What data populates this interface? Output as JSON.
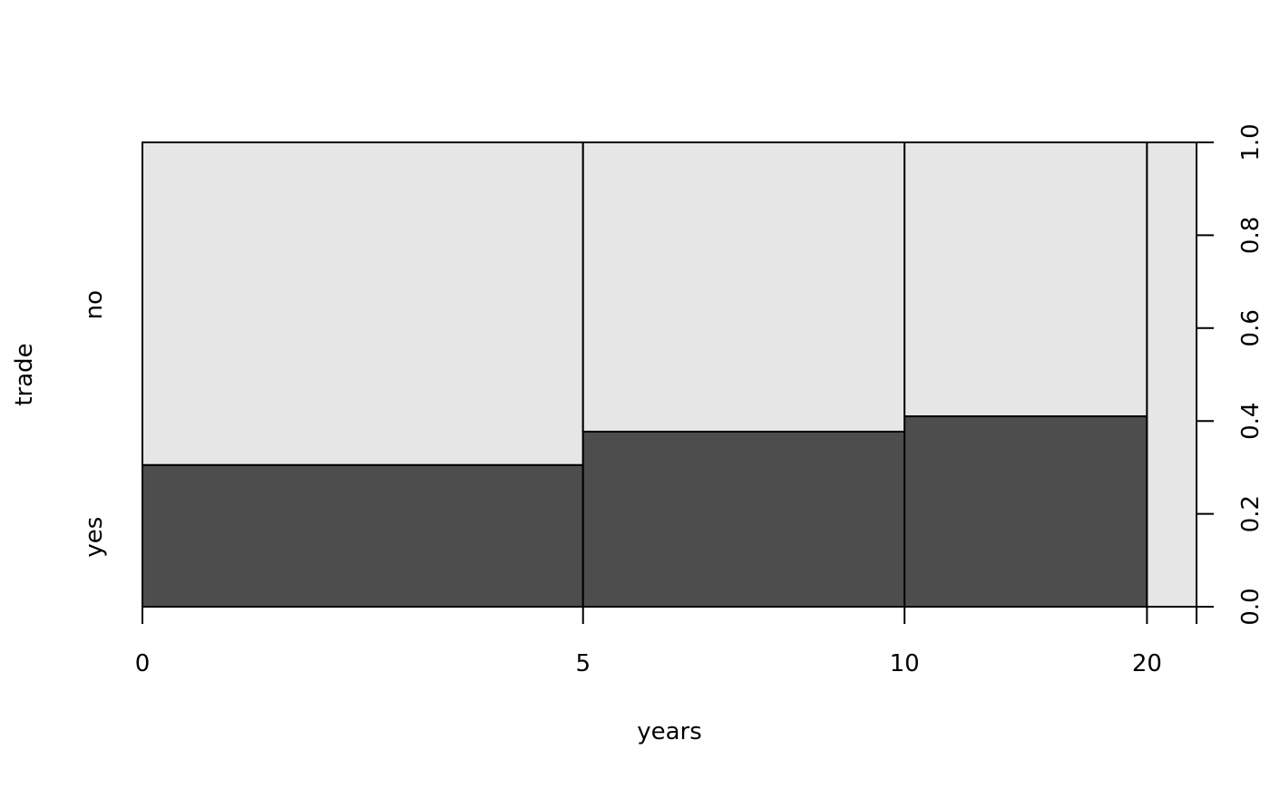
{
  "chart_data": {
    "type": "spineplot",
    "title": "",
    "xlabel": "years",
    "ylabel": "trade",
    "x_tick_labels": [
      "0",
      "5",
      "10",
      "20",
      ""
    ],
    "bins": [
      {
        "label": "0",
        "width_fraction": 0.418,
        "yes": 0.305,
        "no": 0.695
      },
      {
        "label": "5",
        "width_fraction": 0.305,
        "yes": 0.377,
        "no": 0.623
      },
      {
        "label": "10",
        "width_fraction": 0.23,
        "yes": 0.41,
        "no": 0.59
      },
      {
        "label": "20",
        "width_fraction": 0.047,
        "yes": 0.0,
        "no": 1.0
      }
    ],
    "categories": [
      "yes",
      "no"
    ],
    "category_label_positions": [
      0.15,
      0.65
    ],
    "right_axis_ticks": [
      "0.0",
      "0.2",
      "0.4",
      "0.6",
      "0.8",
      "1.0"
    ],
    "ylim": [
      0,
      1
    ],
    "colors": {
      "yes": "#4d4d4d",
      "no": "#e6e6e6"
    }
  }
}
